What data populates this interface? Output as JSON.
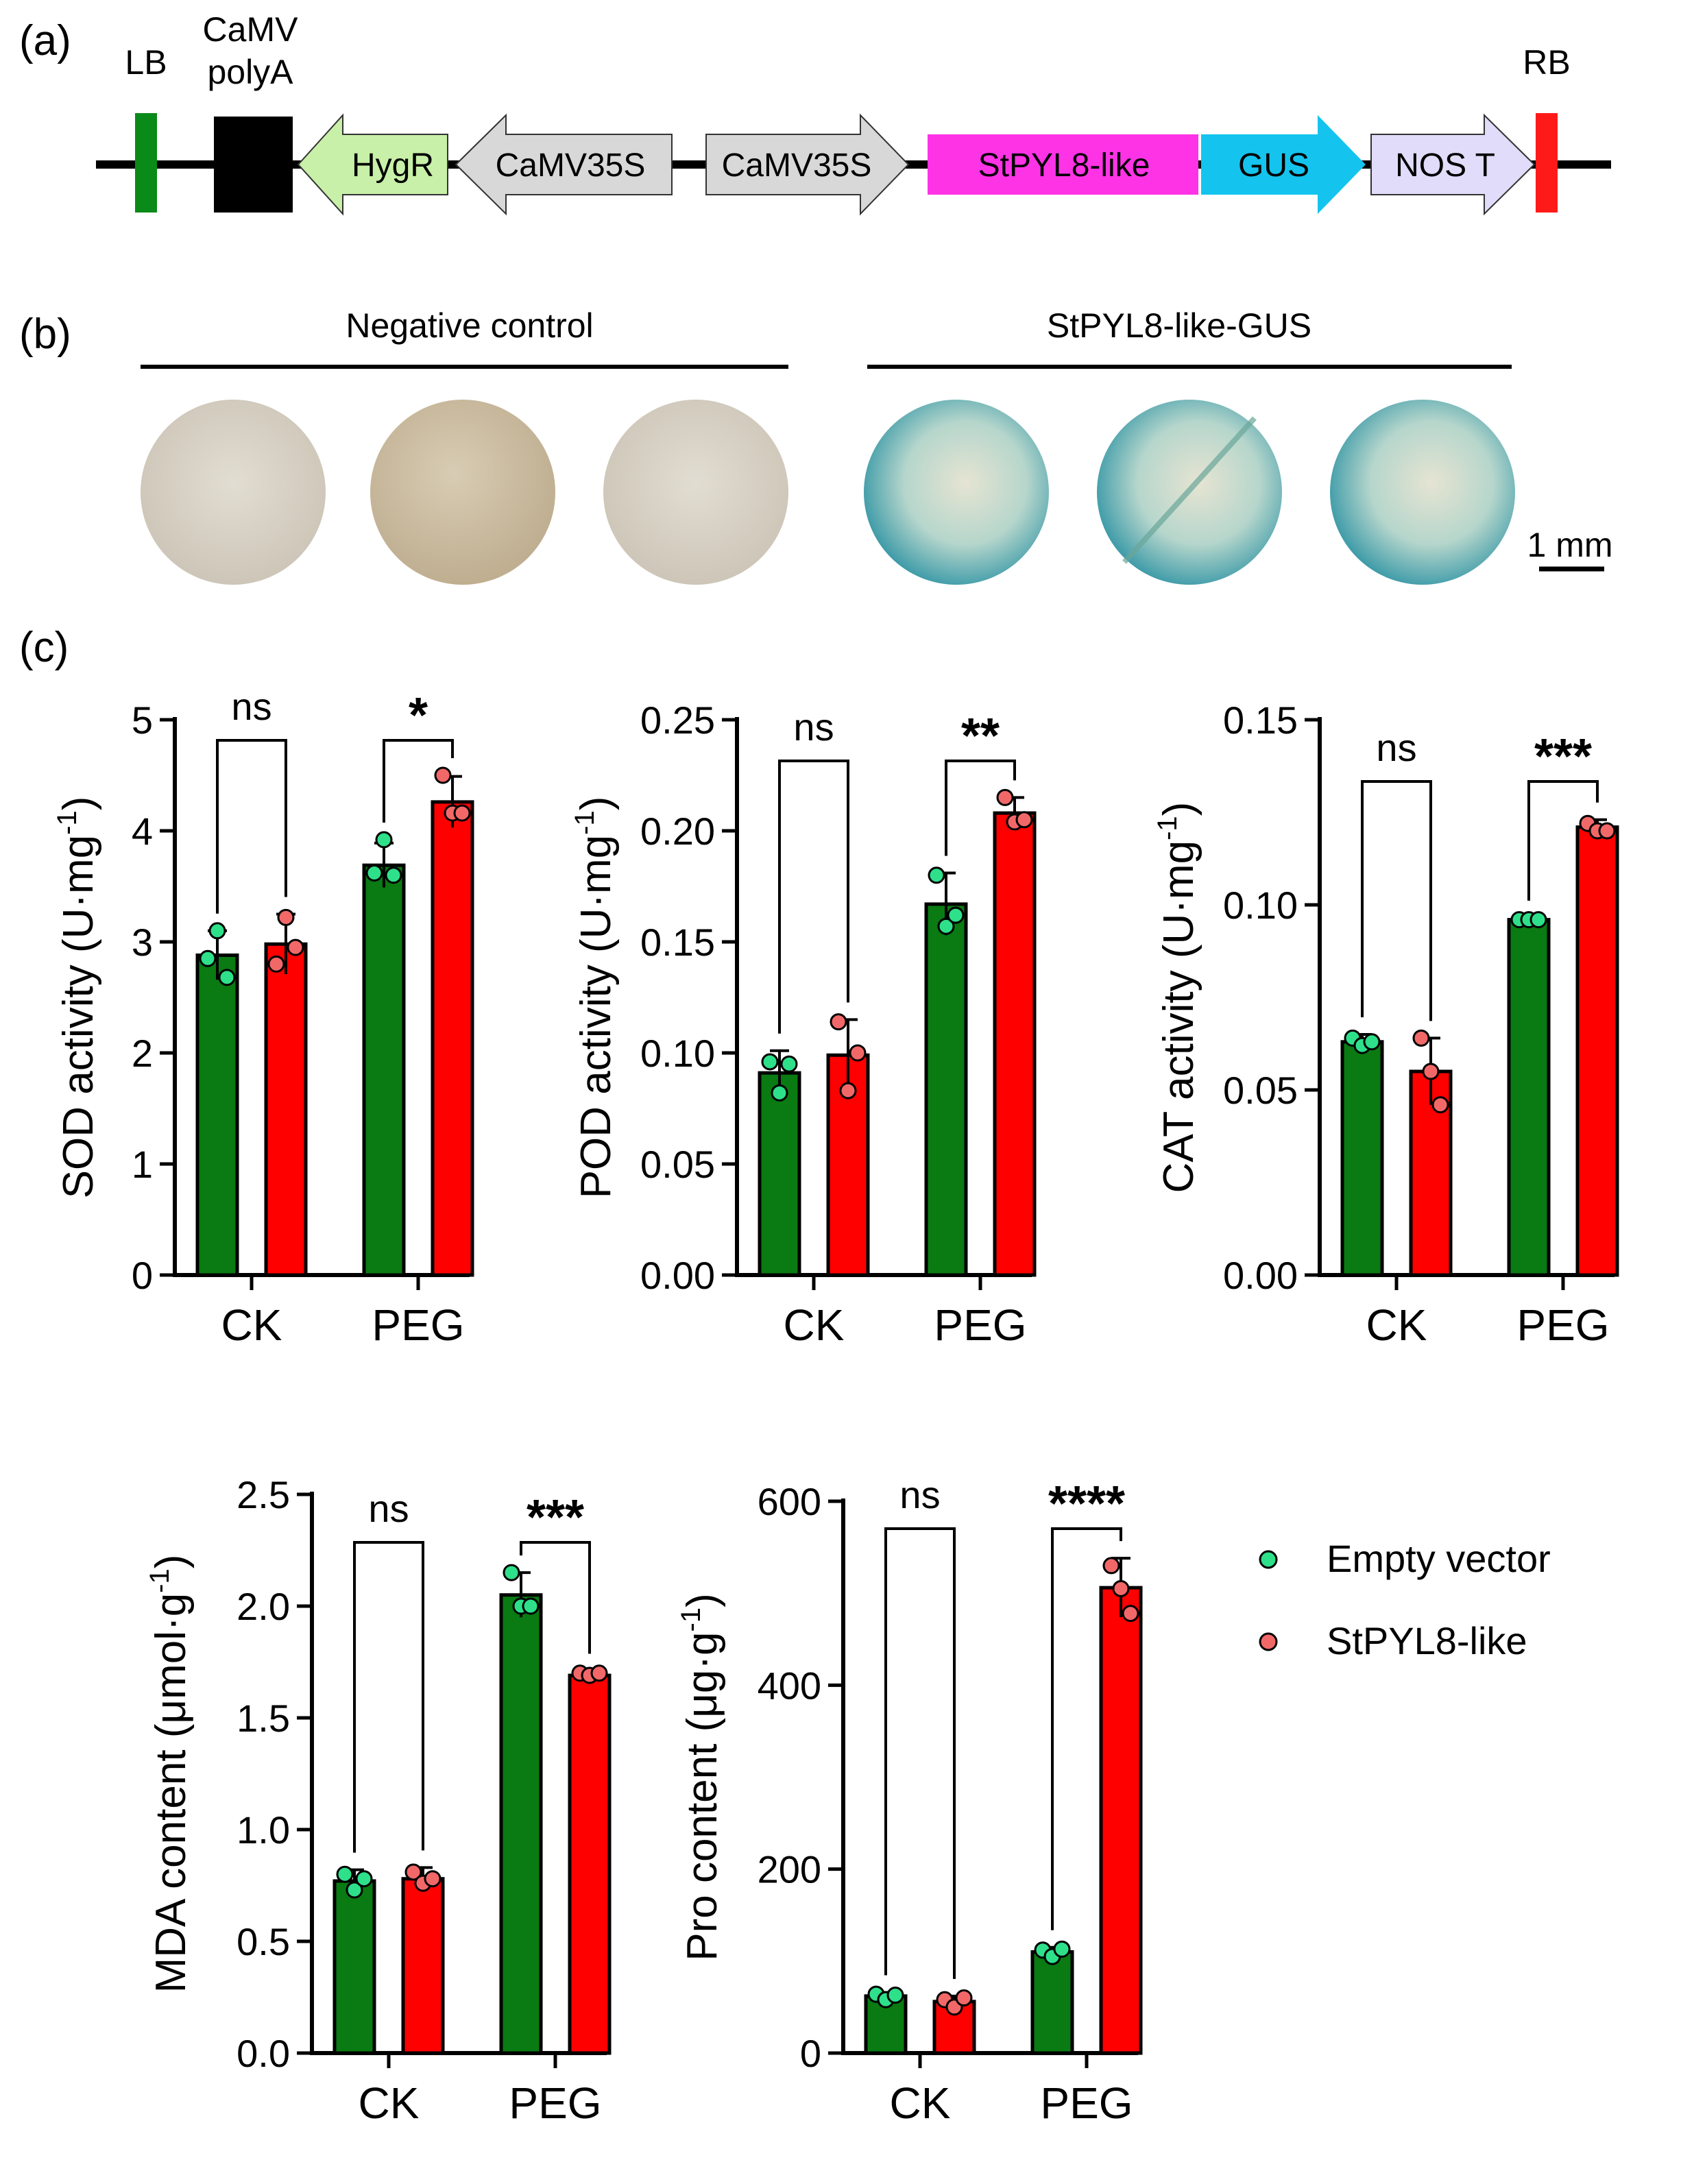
{
  "panel_labels": {
    "a": "(a)",
    "b": "(b)",
    "c": "(c)"
  },
  "construct": {
    "labels": {
      "lb": "LB",
      "polya_line1": "CaMV",
      "polya_line2": "polyA",
      "hygr": "HygR",
      "p35s_rev": "CaMV35S",
      "p35s_fwd": "CaMV35S",
      "gene": "StPYL8-like",
      "gus": "GUS",
      "nost": "NOS T",
      "rb": "RB"
    },
    "colors": {
      "lb": "#0a8a18",
      "polya": "#000000",
      "hygr": "#c8f0a8",
      "p35s": "#d8d8d8",
      "gene": "#ff33e6",
      "gus": "#14c4ee",
      "nost": "#e0dcfa",
      "rb": "#ff1a1a"
    }
  },
  "staining": {
    "negative_label": "Negative control",
    "gus_label": "StPYL8-like-GUS",
    "scale_bar_label": "1 mm"
  },
  "legend": {
    "empty_vector": "Empty vector",
    "stpyl8": "StPYL8-like",
    "colors": {
      "bar_ev": "#0a7a12",
      "bar_oe": "#ff0000",
      "dot_ev": "#2ee08a",
      "dot_oe": "#f26868"
    }
  },
  "chart_data": [
    {
      "id": "sod",
      "type": "bar",
      "ylabel": "SOD activity (U·mg",
      "ylabel_sup": "-1",
      "ylabel_close": ")",
      "ylim": [
        0,
        5
      ],
      "ticks": [
        0,
        1,
        2,
        3,
        4,
        5
      ],
      "tick_labels": [
        "0",
        "1",
        "2",
        "3",
        "4",
        "5"
      ],
      "categories": [
        "CK",
        "PEG"
      ],
      "series": [
        {
          "name": "Empty vector",
          "values": [
            2.88,
            3.69
          ],
          "errors": [
            0.22,
            0.2
          ],
          "points": [
            [
              2.85,
              3.1,
              2.68
            ],
            [
              3.62,
              3.92,
              3.6
            ]
          ]
        },
        {
          "name": "StPYL8-like",
          "values": [
            2.98,
            4.26
          ],
          "errors": [
            0.27,
            0.23
          ],
          "points": [
            [
              2.8,
              3.22,
              2.95
            ],
            [
              4.5,
              4.16,
              4.16
            ]
          ]
        }
      ],
      "significance": [
        "ns",
        "*"
      ]
    },
    {
      "id": "pod",
      "type": "bar",
      "ylabel": "POD activity (U·mg",
      "ylabel_sup": "-1",
      "ylabel_close": ")",
      "ylim": [
        0,
        0.25
      ],
      "ticks": [
        0,
        0.05,
        0.1,
        0.15,
        0.2,
        0.25
      ],
      "tick_labels": [
        "0.00",
        "0.05",
        "0.10",
        "0.15",
        "0.20",
        "0.25"
      ],
      "categories": [
        "CK",
        "PEG"
      ],
      "series": [
        {
          "name": "Empty vector",
          "values": [
            0.091,
            0.167
          ],
          "errors": [
            0.01,
            0.014
          ],
          "points": [
            [
              0.096,
              0.082,
              0.095
            ],
            [
              0.18,
              0.157,
              0.162
            ]
          ]
        },
        {
          "name": "StPYL8-like",
          "values": [
            0.099,
            0.208
          ],
          "errors": [
            0.016,
            0.007
          ],
          "points": [
            [
              0.114,
              0.083,
              0.1
            ],
            [
              0.215,
              0.204,
              0.205
            ]
          ]
        }
      ],
      "significance": [
        "ns",
        "**"
      ]
    },
    {
      "id": "cat",
      "type": "bar",
      "ylabel": "CAT activity (U·mg",
      "ylabel_sup": "-1",
      "ylabel_close": ")",
      "ylim": [
        0,
        0.15
      ],
      "ticks": [
        0,
        0.05,
        0.1,
        0.15
      ],
      "tick_labels": [
        "0.00",
        "0.05",
        "0.10",
        "0.15"
      ],
      "categories": [
        "CK",
        "PEG"
      ],
      "series": [
        {
          "name": "Empty vector",
          "values": [
            0.063,
            0.096
          ],
          "errors": [
            0.002,
            0.0005
          ],
          "points": [
            [
              0.064,
              0.062,
              0.063
            ],
            [
              0.096,
              0.096,
              0.096
            ]
          ]
        },
        {
          "name": "StPYL8-like",
          "values": [
            0.055,
            0.121
          ],
          "errors": [
            0.009,
            0.002
          ],
          "points": [
            [
              0.064,
              0.055,
              0.046
            ],
            [
              0.122,
              0.12,
              0.12
            ]
          ]
        }
      ],
      "significance": [
        "ns",
        "***"
      ]
    },
    {
      "id": "mda",
      "type": "bar",
      "ylabel": "MDA content (μmol·g",
      "ylabel_sup": "-1",
      "ylabel_close": ")",
      "ylim": [
        0,
        2.5
      ],
      "ticks": [
        0,
        0.5,
        1,
        1.5,
        2,
        2.5
      ],
      "tick_labels": [
        "0.0",
        "0.5",
        "1.0",
        "1.5",
        "2.0",
        "2.5"
      ],
      "categories": [
        "CK",
        "PEG"
      ],
      "series": [
        {
          "name": "Empty vector",
          "values": [
            0.77,
            2.05
          ],
          "errors": [
            0.05,
            0.1
          ],
          "points": [
            [
              0.8,
              0.73,
              0.78
            ],
            [
              2.15,
              2.0,
              2.0
            ]
          ]
        },
        {
          "name": "StPYL8-like",
          "values": [
            0.78,
            1.69
          ],
          "errors": [
            0.05,
            0.02
          ],
          "points": [
            [
              0.81,
              0.76,
              0.78
            ],
            [
              1.7,
              1.69,
              1.7
            ]
          ]
        }
      ],
      "significance": [
        "ns",
        "***"
      ]
    },
    {
      "id": "pro",
      "type": "bar",
      "ylabel": "Pro content (μg·g",
      "ylabel_sup": "-1",
      "ylabel_close": ")",
      "ylim": [
        0,
        600
      ],
      "ticks": [
        0,
        200,
        400,
        600
      ],
      "tick_labels": [
        "0",
        "200",
        "400",
        "600"
      ],
      "categories": [
        "CK",
        "PEG"
      ],
      "series": [
        {
          "name": "Empty vector",
          "values": [
            62,
            110
          ],
          "errors": [
            4,
            5
          ],
          "points": [
            [
              64,
              58,
              63
            ],
            [
              112,
              105,
              113
            ]
          ]
        },
        {
          "name": "StPYL8-like",
          "values": [
            56,
            506
          ],
          "errors": [
            6,
            32
          ],
          "points": [
            [
              58,
              50,
              60
            ],
            [
              530,
              505,
              478
            ]
          ]
        }
      ],
      "significance": [
        "ns",
        "****"
      ]
    }
  ]
}
